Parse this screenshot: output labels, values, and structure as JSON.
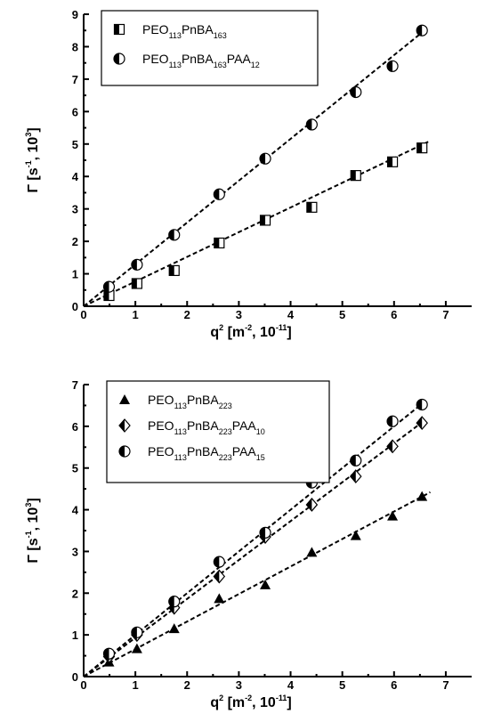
{
  "chart_data": [
    {
      "type": "scatter",
      "title": "",
      "xlabel": {
        "base": "q",
        "sup1": "2",
        "mid": " [m",
        "sup2": "-2",
        "sep": ", ",
        "tenbase": "10",
        "sup3": "-11",
        "end": "]"
      },
      "ylabel": {
        "pre": "Γ [s",
        "sup1": "-1",
        "sep": ", ",
        "tenbase": "10",
        "sup2": "3",
        "end": "]"
      },
      "xlim": [
        0,
        7.5
      ],
      "ylim": [
        0,
        9
      ],
      "xticks": [
        "0",
        "1",
        "2",
        "3",
        "4",
        "5",
        "6",
        "7"
      ],
      "yticks": [
        "0",
        "1",
        "2",
        "3",
        "4",
        "5",
        "6",
        "7",
        "8",
        "9"
      ],
      "legend_position": "top-left",
      "series": [
        {
          "name": [
            [
              "PEO",
              false
            ],
            [
              "113",
              true
            ],
            [
              "PnBA",
              false
            ],
            [
              "163",
              true
            ]
          ],
          "marker": "half-square",
          "x": [
            0.49,
            1.03,
            1.75,
            2.62,
            3.51,
            4.41,
            5.26,
            5.97,
            6.54
          ],
          "y": [
            0.33,
            0.7,
            1.1,
            1.95,
            2.65,
            3.05,
            4.03,
            4.45,
            4.88
          ],
          "fit": [
            [
              0,
              0
            ],
            [
              6.7,
              5.1
            ]
          ]
        },
        {
          "name": [
            [
              "PEO",
              false
            ],
            [
              "113",
              true
            ],
            [
              "PnBA",
              false
            ],
            [
              "163",
              true
            ],
            [
              "PAA",
              false
            ],
            [
              "12",
              true
            ]
          ],
          "marker": "half-circle",
          "x": [
            0.49,
            1.03,
            1.75,
            2.62,
            3.51,
            4.41,
            5.26,
            5.97,
            6.54
          ],
          "y": [
            0.6,
            1.28,
            2.2,
            3.45,
            4.55,
            5.6,
            6.6,
            7.4,
            8.5
          ],
          "fit": [
            [
              0,
              0
            ],
            [
              6.55,
              8.45
            ]
          ]
        }
      ]
    },
    {
      "type": "scatter",
      "title": "",
      "xlabel": {
        "base": "q",
        "sup1": "2",
        "mid": " [m",
        "sup2": "-2",
        "sep": ", ",
        "tenbase": "10",
        "sup3": "-11",
        "end": "]"
      },
      "ylabel": {
        "pre": "Γ [s",
        "sup1": "-1",
        "sep": ", ",
        "tenbase": "10",
        "sup2": "3",
        "end": "]"
      },
      "xlim": [
        0,
        7.5
      ],
      "ylim": [
        0,
        7
      ],
      "xticks": [
        "0",
        "1",
        "2",
        "3",
        "4",
        "5",
        "6",
        "7"
      ],
      "yticks": [
        "0",
        "1",
        "2",
        "3",
        "4",
        "5",
        "6",
        "7"
      ],
      "legend_position": "top-left",
      "series": [
        {
          "name": [
            [
              "PEO",
              false
            ],
            [
              "113",
              true
            ],
            [
              "PnBA",
              false
            ],
            [
              "223",
              true
            ]
          ],
          "marker": "triangle",
          "x": [
            0.49,
            1.03,
            1.75,
            2.62,
            3.51,
            4.41,
            5.26,
            5.97,
            6.54
          ],
          "y": [
            0.35,
            0.67,
            1.15,
            1.87,
            2.2,
            2.98,
            3.38,
            3.85,
            4.32
          ],
          "fit": [
            [
              0,
              0
            ],
            [
              6.7,
              4.42
            ]
          ]
        },
        {
          "name": [
            [
              "PEO",
              false
            ],
            [
              "113",
              true
            ],
            [
              "PnBA",
              false
            ],
            [
              "223",
              true
            ],
            [
              "PAA",
              false
            ],
            [
              "10",
              true
            ]
          ],
          "marker": "half-diamond",
          "x": [
            0.49,
            1.03,
            1.75,
            2.62,
            3.51,
            4.41,
            5.26,
            5.97,
            6.54
          ],
          "y": [
            0.48,
            1.0,
            1.65,
            2.4,
            3.35,
            4.12,
            4.8,
            5.52,
            6.08
          ],
          "fit": [
            [
              0,
              0
            ],
            [
              6.6,
              6.15
            ]
          ]
        },
        {
          "name": [
            [
              "PEO",
              false
            ],
            [
              "113",
              true
            ],
            [
              "PnBA",
              false
            ],
            [
              "223",
              true
            ],
            [
              "PAA",
              false
            ],
            [
              "15",
              true
            ]
          ],
          "marker": "half-circle",
          "x": [
            0.49,
            1.03,
            1.75,
            2.62,
            3.51,
            4.41,
            5.26,
            5.97,
            6.54
          ],
          "y": [
            0.55,
            1.06,
            1.8,
            2.75,
            3.45,
            4.65,
            5.18,
            6.12,
            6.52
          ],
          "fit": [
            [
              0,
              0
            ],
            [
              6.6,
              6.6
            ]
          ]
        }
      ]
    }
  ]
}
